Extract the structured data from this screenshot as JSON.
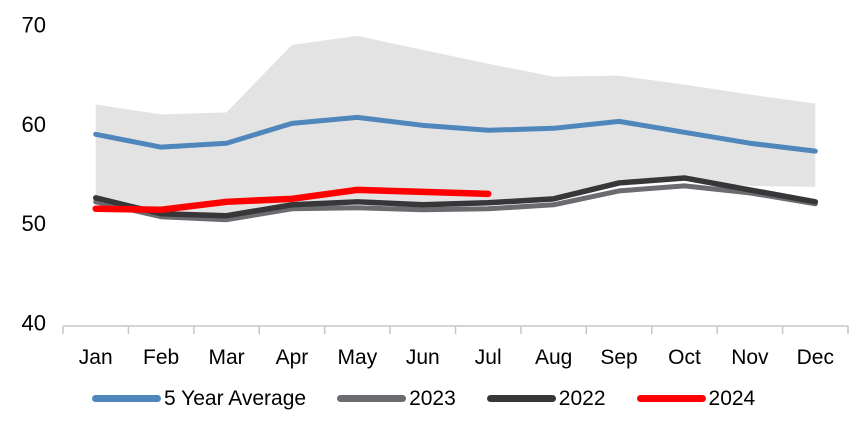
{
  "chart_data": {
    "type": "line",
    "title": "",
    "xlabel": "",
    "ylabel": "",
    "categories": [
      "Jan",
      "Feb",
      "Mar",
      "Apr",
      "May",
      "Jun",
      "Jul",
      "Aug",
      "Sep",
      "Oct",
      "Nov",
      "Dec"
    ],
    "ylim": [
      40,
      70
    ],
    "y_ticks": [
      70,
      60,
      50,
      40
    ],
    "grid": false,
    "legend_position": "bottom",
    "band": {
      "name": "5-year min-max range",
      "color": "#e3e3e3",
      "top": [
        62.0,
        61.0,
        61.2,
        68.0,
        68.9,
        67.5,
        66.1,
        64.8,
        64.9,
        64.0,
        63.0,
        62.1
      ],
      "bottom": [
        52.9,
        51.3,
        51.0,
        52.0,
        52.4,
        52.0,
        52.1,
        52.5,
        54.0,
        54.4,
        53.8,
        53.7
      ]
    },
    "series": [
      {
        "name": "5 Year Average",
        "color": "#4F86BC",
        "stroke_width": 5,
        "values": [
          59.0,
          57.7,
          58.1,
          60.1,
          60.7,
          59.9,
          59.4,
          59.6,
          60.3,
          59.2,
          58.1,
          57.3
        ]
      },
      {
        "name": "2023",
        "color": "#6B6B70",
        "stroke_width": 5,
        "values": [
          52.2,
          50.7,
          50.4,
          51.5,
          51.6,
          51.4,
          51.5,
          51.9,
          53.3,
          53.8,
          53.1,
          52.0
        ]
      },
      {
        "name": "2022",
        "color": "#373739",
        "stroke_width": 5.5,
        "values": [
          52.6,
          51.0,
          50.8,
          51.9,
          52.2,
          51.9,
          52.1,
          52.5,
          54.1,
          54.6,
          53.4,
          52.2
        ]
      },
      {
        "name": "2024",
        "color": "#FF0000",
        "stroke_width": 6.5,
        "values": [
          51.5,
          51.4,
          52.2,
          52.5,
          53.4,
          53.2,
          53.0,
          null,
          null,
          null,
          null,
          null
        ]
      }
    ],
    "axis_color": "#C6C6C6",
    "text_color": "#000000"
  },
  "legend": {
    "items": [
      {
        "label": "5 Year Average",
        "color": "#4F86BC"
      },
      {
        "label": "2023",
        "color": "#6B6B70"
      },
      {
        "label": "2022",
        "color": "#373739"
      },
      {
        "label": "2024",
        "color": "#FF0000"
      }
    ]
  }
}
